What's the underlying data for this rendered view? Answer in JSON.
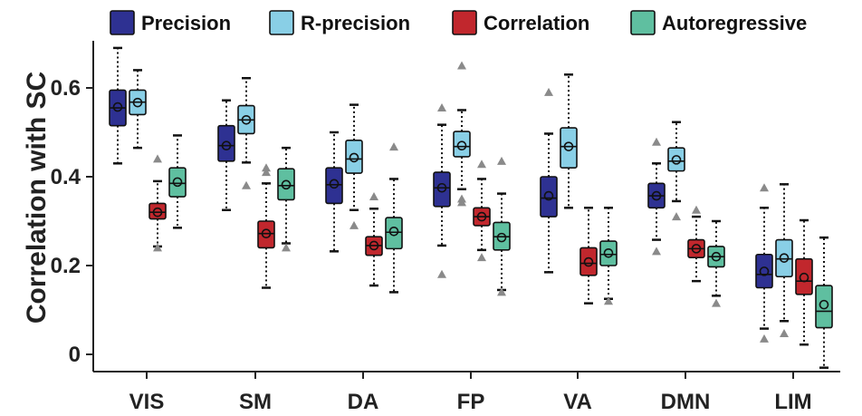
{
  "chart_data": {
    "type": "box",
    "ylabel": "Correlation with SC",
    "ylim": [
      -0.04,
      0.7
    ],
    "yticks": [
      0,
      0.2,
      0.4,
      0.6
    ],
    "ytick_labels": [
      "0",
      "0.2",
      "0.4",
      "0.6"
    ],
    "categories": [
      "VIS",
      "SM",
      "DA",
      "FP",
      "VA",
      "DMN",
      "LIM"
    ],
    "legend_position": "top",
    "series": [
      {
        "name": "Precision",
        "color": "#2e3192",
        "boxes": [
          {
            "whislo": 0.43,
            "q1": 0.515,
            "med": 0.555,
            "q3": 0.595,
            "whishi": 0.69,
            "mean": 0.557,
            "fliers": []
          },
          {
            "whislo": 0.325,
            "q1": 0.435,
            "med": 0.47,
            "q3": 0.515,
            "whishi": 0.572,
            "mean": 0.47,
            "fliers": []
          },
          {
            "whislo": 0.232,
            "q1": 0.34,
            "med": 0.382,
            "q3": 0.42,
            "whishi": 0.5,
            "mean": 0.384,
            "fliers": []
          },
          {
            "whislo": 0.245,
            "q1": 0.333,
            "med": 0.375,
            "q3": 0.41,
            "whishi": 0.517,
            "mean": 0.375,
            "fliers": [
              0.555,
              0.18
            ]
          },
          {
            "whislo": 0.185,
            "q1": 0.31,
            "med": 0.352,
            "q3": 0.4,
            "whishi": 0.497,
            "mean": 0.357,
            "fliers": [
              0.59
            ]
          },
          {
            "whislo": 0.258,
            "q1": 0.33,
            "med": 0.357,
            "q3": 0.385,
            "whishi": 0.43,
            "mean": 0.357,
            "fliers": [
              0.478,
              0.232
            ]
          },
          {
            "whislo": 0.058,
            "q1": 0.15,
            "med": 0.18,
            "q3": 0.225,
            "whishi": 0.33,
            "mean": 0.187,
            "fliers": [
              0.375,
              0.035
            ]
          }
        ]
      },
      {
        "name": "R-precision",
        "color": "#89cfe6",
        "boxes": [
          {
            "whislo": 0.465,
            "q1": 0.54,
            "med": 0.568,
            "q3": 0.595,
            "whishi": 0.64,
            "mean": 0.567,
            "fliers": []
          },
          {
            "whislo": 0.432,
            "q1": 0.497,
            "med": 0.528,
            "q3": 0.56,
            "whishi": 0.622,
            "mean": 0.528,
            "fliers": [
              0.38
            ]
          },
          {
            "whislo": 0.325,
            "q1": 0.408,
            "med": 0.44,
            "q3": 0.482,
            "whishi": 0.562,
            "mean": 0.443,
            "fliers": [
              0.29
            ]
          },
          {
            "whislo": 0.372,
            "q1": 0.445,
            "med": 0.468,
            "q3": 0.502,
            "whishi": 0.55,
            "mean": 0.47,
            "fliers": [
              0.65,
              0.35,
              0.342
            ]
          },
          {
            "whislo": 0.33,
            "q1": 0.42,
            "med": 0.468,
            "q3": 0.51,
            "whishi": 0.63,
            "mean": 0.468,
            "fliers": []
          },
          {
            "whislo": 0.345,
            "q1": 0.413,
            "med": 0.435,
            "q3": 0.465,
            "whishi": 0.523,
            "mean": 0.438,
            "fliers": [
              0.31
            ]
          },
          {
            "whislo": 0.075,
            "q1": 0.175,
            "med": 0.215,
            "q3": 0.258,
            "whishi": 0.383,
            "mean": 0.217,
            "fliers": [
              0.047
            ]
          }
        ]
      },
      {
        "name": "Correlation",
        "color": "#c1272d",
        "boxes": [
          {
            "whislo": 0.243,
            "q1": 0.305,
            "med": 0.32,
            "q3": 0.34,
            "whishi": 0.39,
            "mean": 0.32,
            "fliers": [
              0.44,
              0.24
            ]
          },
          {
            "whislo": 0.15,
            "q1": 0.24,
            "med": 0.272,
            "q3": 0.3,
            "whishi": 0.385,
            "mean": 0.272,
            "fliers": [
              0.42,
              0.41
            ]
          },
          {
            "whislo": 0.155,
            "q1": 0.223,
            "med": 0.245,
            "q3": 0.265,
            "whishi": 0.328,
            "mean": 0.245,
            "fliers": [
              0.355
            ]
          },
          {
            "whislo": 0.235,
            "q1": 0.29,
            "med": 0.31,
            "q3": 0.33,
            "whishi": 0.395,
            "mean": 0.31,
            "fliers": [
              0.428,
              0.218
            ]
          },
          {
            "whislo": 0.115,
            "q1": 0.178,
            "med": 0.205,
            "q3": 0.24,
            "whishi": 0.33,
            "mean": 0.208,
            "fliers": []
          },
          {
            "whislo": 0.165,
            "q1": 0.218,
            "med": 0.238,
            "q3": 0.258,
            "whishi": 0.31,
            "mean": 0.238,
            "fliers": [
              0.325
            ]
          },
          {
            "whislo": 0.022,
            "q1": 0.135,
            "med": 0.165,
            "q3": 0.215,
            "whishi": 0.302,
            "mean": 0.173,
            "fliers": []
          }
        ]
      },
      {
        "name": "Autoregressive",
        "color": "#5fbfa0",
        "boxes": [
          {
            "whislo": 0.285,
            "q1": 0.355,
            "med": 0.385,
            "q3": 0.42,
            "whishi": 0.493,
            "mean": 0.388,
            "fliers": []
          },
          {
            "whislo": 0.25,
            "q1": 0.348,
            "med": 0.38,
            "q3": 0.418,
            "whishi": 0.465,
            "mean": 0.382,
            "fliers": [
              0.24
            ]
          },
          {
            "whislo": 0.14,
            "q1": 0.238,
            "med": 0.275,
            "q3": 0.308,
            "whishi": 0.395,
            "mean": 0.277,
            "fliers": [
              0.467
            ]
          },
          {
            "whislo": 0.145,
            "q1": 0.235,
            "med": 0.265,
            "q3": 0.297,
            "whishi": 0.362,
            "mean": 0.263,
            "fliers": [
              0.435,
              0.14
            ]
          },
          {
            "whislo": 0.125,
            "q1": 0.2,
            "med": 0.225,
            "q3": 0.255,
            "whishi": 0.33,
            "mean": 0.228,
            "fliers": [
              0.12
            ]
          },
          {
            "whislo": 0.132,
            "q1": 0.197,
            "med": 0.22,
            "q3": 0.243,
            "whishi": 0.3,
            "mean": 0.22,
            "fliers": [
              0.115
            ]
          },
          {
            "whislo": -0.03,
            "q1": 0.06,
            "med": 0.097,
            "q3": 0.155,
            "whishi": 0.263,
            "mean": 0.112,
            "fliers": []
          }
        ]
      }
    ]
  }
}
